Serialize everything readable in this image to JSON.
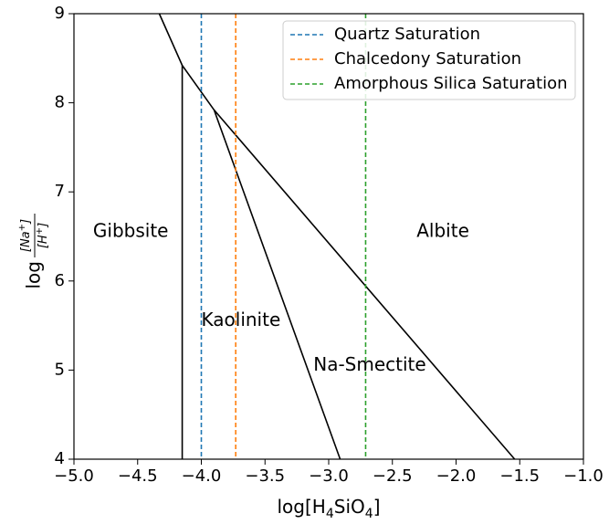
{
  "chart_data": {
    "type": "line",
    "xlim": [
      -5.0,
      -1.0
    ],
    "ylim": [
      4,
      9
    ],
    "xlabel": {
      "text": "log[H",
      "sub1": "4",
      "mid": "SiO",
      "sub2": "4",
      "end": "]"
    },
    "ylabel": {
      "prefix": "log",
      "numerator": "[Na",
      "num_sup": "+",
      "num_end": "]",
      "denominator": "[H",
      "den_sup": "+",
      "den_end": "]"
    },
    "x_ticks": [
      -5.0,
      -4.5,
      -4.0,
      -3.5,
      -3.0,
      -2.5,
      -2.0,
      -1.5,
      -1.0
    ],
    "x_tick_labels": [
      "−5.0",
      "−4.5",
      "−4.0",
      "−3.5",
      "−3.0",
      "−2.5",
      "−2.0",
      "−1.5",
      "−1.0"
    ],
    "y_ticks": [
      4,
      5,
      6,
      7,
      8,
      9
    ],
    "y_tick_labels": [
      "4",
      "5",
      "6",
      "7",
      "8",
      "9"
    ],
    "grid": false,
    "legend_position": "top-right",
    "boundaries": [
      {
        "x": [
          -4.15,
          -4.15
        ],
        "y": [
          4.0,
          8.42
        ]
      },
      {
        "x": [
          -4.33,
          -4.15,
          -3.9,
          -1.54
        ],
        "y": [
          9.0,
          8.42,
          7.92,
          4.0
        ]
      },
      {
        "x": [
          -3.9,
          -2.91
        ],
        "y": [
          7.92,
          4.0
        ]
      }
    ],
    "series": [
      {
        "name": "Quartz Saturation",
        "x": -4.0,
        "color": "#1f77b4",
        "style": "dashed"
      },
      {
        "name": "Chalcedony Saturation",
        "x": -3.73,
        "color": "#ff7f0e",
        "style": "dashed"
      },
      {
        "name": "Amorphous Silica Saturation",
        "x": -2.71,
        "color": "#2ca02c",
        "style": "dashed"
      }
    ],
    "regions": [
      {
        "label": "Gibbsite",
        "x": -4.85,
        "y": 6.55
      },
      {
        "label": "Kaolinite",
        "x": -4.0,
        "y": 5.55
      },
      {
        "label": "Na-Smectite",
        "x": -3.12,
        "y": 5.05
      },
      {
        "label": "Albite",
        "x": -2.31,
        "y": 6.55
      }
    ]
  }
}
